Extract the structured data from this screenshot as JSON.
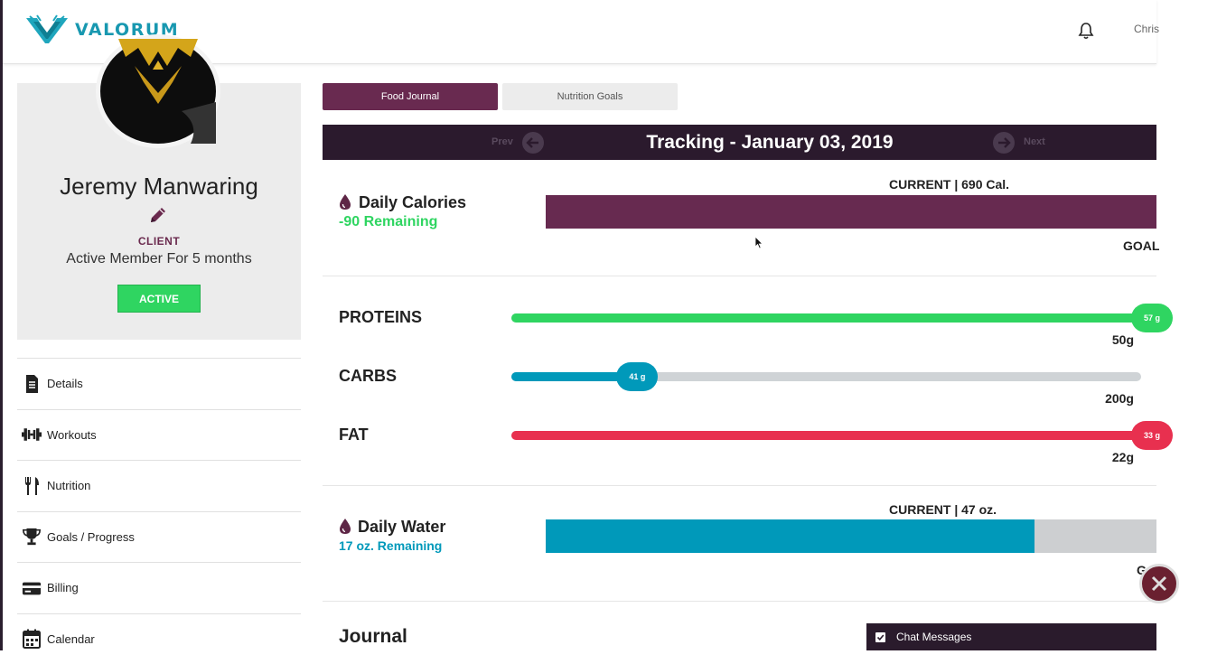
{
  "header": {
    "logo_text": "VALORUM",
    "user_name": "Chris"
  },
  "profile": {
    "name": "Jeremy Manwaring",
    "role": "CLIENT",
    "membership": "Active Member For 5 months",
    "status": "ACTIVE"
  },
  "nav": {
    "items": [
      {
        "label": "Details",
        "icon": "document-icon"
      },
      {
        "label": "Workouts",
        "icon": "dumbbell-icon"
      },
      {
        "label": "Nutrition",
        "icon": "fork-knife-icon"
      },
      {
        "label": "Goals / Progress",
        "icon": "trophy-icon"
      },
      {
        "label": "Billing",
        "icon": "credit-card-icon"
      },
      {
        "label": "Calendar",
        "icon": "calendar-icon"
      }
    ]
  },
  "tabs": {
    "active": "Food Journal",
    "inactive": "Nutrition Goals"
  },
  "tracking": {
    "title": "Tracking - January 03, 2019",
    "prev_label": "Prev",
    "next_label": "Next"
  },
  "calories": {
    "title": "Daily Calories",
    "remaining": "-90 Remaining",
    "current": "CURRENT | 690 Cal.",
    "goal": "GOAL",
    "progress": 1.0
  },
  "macros": {
    "proteins": {
      "label": "PROTEINS",
      "current": "57 g",
      "goal": "50g",
      "progress": 1.0
    },
    "carbs": {
      "label": "CARBS",
      "current": "41 g",
      "goal": "200g",
      "progress": 0.2
    },
    "fat": {
      "label": "FAT",
      "current": "33 g",
      "goal": "22g",
      "progress": 1.0
    }
  },
  "water": {
    "title": "Daily Water",
    "remaining": "17 oz. Remaining",
    "current": "CURRENT | 47 oz.",
    "goal_partial": "G",
    "progress": 0.8
  },
  "journal": {
    "title": "Journal"
  },
  "chat": {
    "label": "Chat Messages"
  },
  "colors": {
    "brand_teal": "#1898b0",
    "plum": "#692a50",
    "dark_plum": "#2b1a2d",
    "green": "#2fd561",
    "carbs_blue": "#0099ba",
    "fat_red": "#e8304f"
  }
}
